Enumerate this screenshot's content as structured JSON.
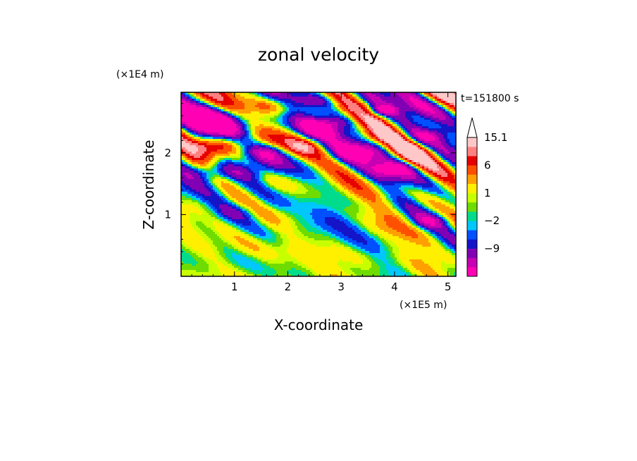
{
  "chart_data": {
    "type": "heatmap",
    "title": "zonal velocity",
    "xlabel": "X-coordinate",
    "ylabel": "Z-coordinate",
    "x_scale_label": "(×1E5 m)",
    "y_scale_label": "(×1E4 m)",
    "time_label": "t=151800 s",
    "xlim": [
      0,
      5.15
    ],
    "ylim": [
      0,
      2.98
    ],
    "x_ticks": [
      1,
      2,
      3,
      4,
      5
    ],
    "y_ticks": [
      1,
      2
    ],
    "x_tick_labels": [
      "1",
      "2",
      "3",
      "4",
      "5"
    ],
    "y_tick_labels": [
      "1",
      "2"
    ],
    "colorbar": {
      "levels": [
        -15,
        -12,
        -9,
        -6,
        -4,
        -2,
        -1,
        0,
        1,
        2,
        4,
        6,
        9,
        12,
        15.1
      ],
      "colors": [
        "#ff00b4",
        "#c800b4",
        "#8200b4",
        "#1414c8",
        "#0050ff",
        "#00c8ff",
        "#00dc8c",
        "#6edc00",
        "#c8ff00",
        "#fff000",
        "#ffa000",
        "#ff5000",
        "#e60000",
        "#ff8080",
        "#ffc8c8"
      ],
      "labels": [
        "15.1",
        "6",
        "1",
        "−2",
        "−9"
      ],
      "label_values": [
        15.1,
        6,
        1,
        -2,
        -9
      ]
    }
  }
}
